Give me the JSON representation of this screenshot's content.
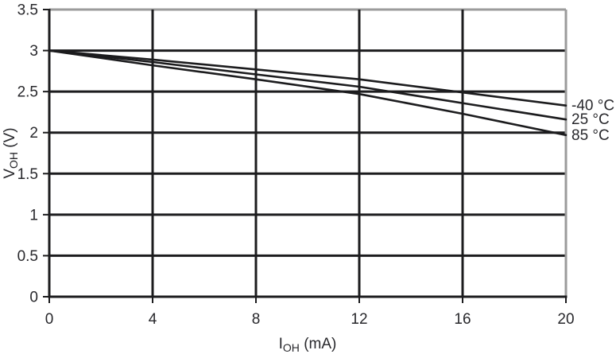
{
  "figure": {
    "background": "#ffffff"
  },
  "chart_data": {
    "type": "line",
    "title": "",
    "xlabel": {
      "symbol": "I",
      "subscript": "OH",
      "unit": "(mA)"
    },
    "ylabel": {
      "symbol": "V",
      "subscript": "OH",
      "unit": "(V)"
    },
    "x": [
      0,
      4,
      8,
      12,
      16,
      20
    ],
    "series": [
      {
        "name": "-40 °C",
        "values": [
          3.0,
          2.89,
          2.77,
          2.65,
          2.49,
          2.33
        ]
      },
      {
        "name": "25 °C",
        "values": [
          3.0,
          2.86,
          2.71,
          2.56,
          2.36,
          2.16
        ]
      },
      {
        "name": "85 °C",
        "values": [
          3.0,
          2.82,
          2.65,
          2.47,
          2.23,
          1.97
        ]
      }
    ],
    "xlim": [
      0,
      20
    ],
    "ylim": [
      0,
      3.5
    ],
    "xticks": [
      0,
      4,
      8,
      12,
      16,
      20
    ],
    "yticks": [
      0,
      0.5,
      1,
      1.5,
      2,
      2.5,
      3,
      3.5
    ],
    "grid": true,
    "legend_position": "right-of-curve-ends",
    "colors": {
      "line": "#1c1c1e",
      "grid": "#1c1c1e",
      "axis": "#1c1c1e",
      "frame": "#9b9b9b",
      "text": "#28282c"
    }
  }
}
